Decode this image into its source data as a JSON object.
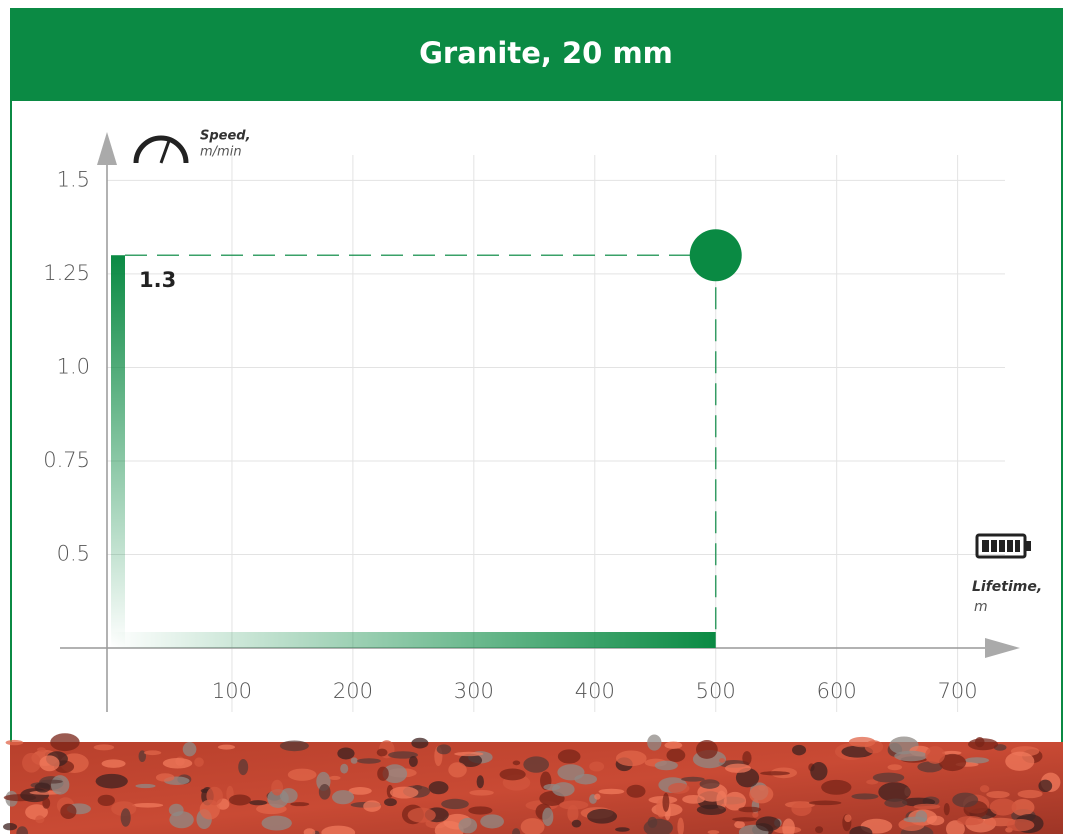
{
  "chart_data": {
    "type": "scatter",
    "title": "Granite, 20 mm",
    "x_label": "Lifetime,",
    "x_unit": "m",
    "y_label": "Speed,",
    "y_unit": "m/min",
    "x": [
      500
    ],
    "series": [
      {
        "name": null,
        "color": "#0a8a43",
        "values": [
          1.3
        ]
      }
    ],
    "xlim": [
      0,
      740
    ],
    "ylim": [
      0.25,
      1.6
    ],
    "xticks": [
      100,
      200,
      300,
      400,
      500,
      600,
      700
    ],
    "yticks": [
      1.5,
      1.25,
      {
        "value": 1,
        "label": "1.0"
      },
      0.75,
      0.5
    ],
    "grid": true
  }
}
